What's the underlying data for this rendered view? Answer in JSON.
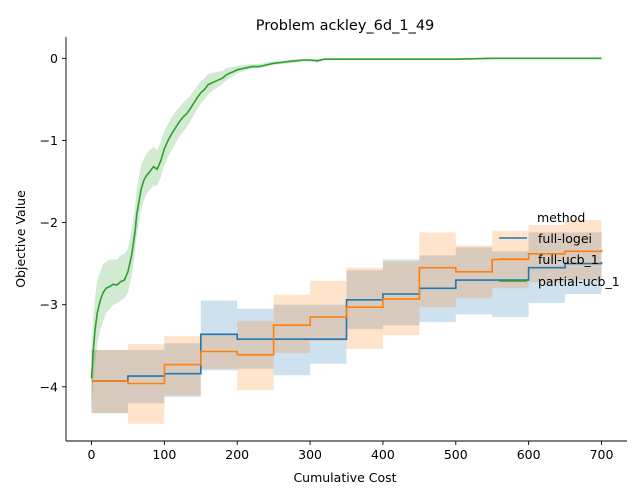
{
  "chart_data": {
    "type": "line",
    "title": "Problem ackley_6d_1_49",
    "xlabel": "Cumulative Cost",
    "ylabel": "Objective Value",
    "xlim": [
      -35,
      735
    ],
    "ylim": [
      -4.66,
      0.26
    ],
    "xticks": [
      0,
      100,
      200,
      300,
      400,
      500,
      600,
      700
    ],
    "yticks": [
      0,
      -1,
      -2,
      -3,
      -4
    ],
    "ytick_labels": [
      "0",
      "−1",
      "−2",
      "−3",
      "−4"
    ],
    "grid": false,
    "legend": {
      "title": "method",
      "placement": "right",
      "entries": [
        "full-logei",
        "full-ucb_1",
        "partial-ucb_1"
      ]
    },
    "series": [
      {
        "name": "full-logei",
        "color": "#1f77b4",
        "step": true,
        "x": [
          0,
          50,
          100,
          150,
          200,
          250,
          300,
          350,
          400,
          450,
          500,
          550,
          600,
          650,
          700
        ],
        "mean": [
          -3.93,
          -3.87,
          -3.84,
          -3.36,
          -3.42,
          -3.42,
          -3.42,
          -2.94,
          -2.87,
          -2.8,
          -2.7,
          -2.7,
          -2.55,
          -2.5,
          -2.48
        ],
        "lower": [
          -4.32,
          -4.2,
          -4.12,
          -3.8,
          -3.78,
          -3.86,
          -3.72,
          -3.3,
          -3.25,
          -3.21,
          -3.12,
          -3.15,
          -2.98,
          -2.87,
          -2.85
        ],
        "upper": [
          -3.55,
          -3.55,
          -3.47,
          -2.95,
          -3.05,
          -3.0,
          -3.0,
          -2.58,
          -2.45,
          -2.4,
          -2.3,
          -2.35,
          -2.12,
          -2.12,
          -2.1
        ]
      },
      {
        "name": "full-ucb_1",
        "color": "#ff7f0e",
        "step": true,
        "x": [
          0,
          50,
          100,
          150,
          200,
          250,
          300,
          350,
          400,
          450,
          500,
          550,
          600,
          650,
          700
        ],
        "mean": [
          -3.93,
          -3.96,
          -3.73,
          -3.57,
          -3.61,
          -3.25,
          -3.15,
          -3.03,
          -2.93,
          -2.55,
          -2.6,
          -2.45,
          -2.38,
          -2.35,
          -2.33
        ],
        "lower": [
          -4.32,
          -4.45,
          -4.11,
          -3.78,
          -4.04,
          -3.59,
          -3.44,
          -3.54,
          -3.37,
          -3.03,
          -2.92,
          -2.8,
          -2.73,
          -2.7,
          -2.96
        ],
        "upper": [
          -3.55,
          -3.48,
          -3.38,
          -3.35,
          -3.2,
          -2.88,
          -2.71,
          -2.55,
          -2.47,
          -2.12,
          -2.28,
          -2.1,
          -2.03,
          -1.97,
          -1.91
        ]
      },
      {
        "name": "partial-ucb_1",
        "color": "#2ca02c",
        "step": false,
        "x": [
          0,
          2,
          5,
          8,
          12,
          16,
          20,
          25,
          30,
          35,
          40,
          45,
          50,
          55,
          60,
          62,
          65,
          68,
          72,
          76,
          80,
          85,
          90,
          95,
          100,
          105,
          110,
          115,
          120,
          125,
          130,
          135,
          140,
          145,
          150,
          155,
          160,
          165,
          170,
          175,
          180,
          185,
          190,
          195,
          200,
          210,
          220,
          230,
          240,
          250,
          260,
          270,
          280,
          290,
          300,
          310,
          320,
          350,
          400,
          450,
          500,
          550,
          600,
          650,
          700
        ],
        "mean": [
          -3.9,
          -3.6,
          -3.3,
          -3.1,
          -2.95,
          -2.85,
          -2.8,
          -2.78,
          -2.75,
          -2.76,
          -2.72,
          -2.7,
          -2.6,
          -2.4,
          -2.1,
          -1.9,
          -1.75,
          -1.6,
          -1.48,
          -1.42,
          -1.38,
          -1.32,
          -1.35,
          -1.25,
          -1.1,
          -1.0,
          -0.92,
          -0.85,
          -0.78,
          -0.72,
          -0.68,
          -0.62,
          -0.55,
          -0.48,
          -0.42,
          -0.38,
          -0.32,
          -0.3,
          -0.28,
          -0.26,
          -0.24,
          -0.2,
          -0.18,
          -0.16,
          -0.14,
          -0.12,
          -0.1,
          -0.1,
          -0.08,
          -0.06,
          -0.05,
          -0.04,
          -0.03,
          -0.02,
          -0.02,
          -0.03,
          -0.01,
          -0.01,
          -0.01,
          -0.01,
          -0.01,
          0.0,
          0.0,
          0.0,
          0.0
        ],
        "lower": [
          -4.3,
          -4.0,
          -3.7,
          -3.5,
          -3.3,
          -3.2,
          -3.1,
          -3.05,
          -3.0,
          -2.98,
          -2.95,
          -2.92,
          -2.85,
          -2.65,
          -2.35,
          -2.15,
          -2.0,
          -1.85,
          -1.72,
          -1.65,
          -1.6,
          -1.55,
          -1.55,
          -1.45,
          -1.3,
          -1.2,
          -1.12,
          -1.04,
          -0.96,
          -0.9,
          -0.85,
          -0.78,
          -0.7,
          -0.62,
          -0.55,
          -0.5,
          -0.44,
          -0.4,
          -0.37,
          -0.34,
          -0.31,
          -0.27,
          -0.24,
          -0.21,
          -0.18,
          -0.15,
          -0.13,
          -0.12,
          -0.1,
          -0.08,
          -0.07,
          -0.06,
          -0.05,
          -0.04,
          -0.04,
          -0.05,
          -0.02,
          -0.02,
          -0.02,
          -0.02,
          -0.02,
          -0.01,
          -0.01,
          -0.01,
          -0.01
        ],
        "upper": [
          -3.5,
          -3.2,
          -2.9,
          -2.7,
          -2.6,
          -2.5,
          -2.48,
          -2.45,
          -2.45,
          -2.45,
          -2.4,
          -2.38,
          -2.32,
          -2.1,
          -1.8,
          -1.6,
          -1.45,
          -1.3,
          -1.22,
          -1.15,
          -1.12,
          -1.08,
          -1.12,
          -1.02,
          -0.88,
          -0.8,
          -0.72,
          -0.65,
          -0.6,
          -0.55,
          -0.5,
          -0.46,
          -0.4,
          -0.34,
          -0.28,
          -0.24,
          -0.19,
          -0.18,
          -0.17,
          -0.16,
          -0.15,
          -0.12,
          -0.11,
          -0.1,
          -0.09,
          -0.08,
          -0.07,
          -0.07,
          -0.05,
          -0.04,
          -0.03,
          -0.02,
          -0.01,
          -0.01,
          -0.01,
          -0.01,
          0.0,
          0.0,
          0.0,
          0.0,
          0.0,
          0.01,
          0.01,
          0.01,
          0.01
        ]
      }
    ]
  }
}
